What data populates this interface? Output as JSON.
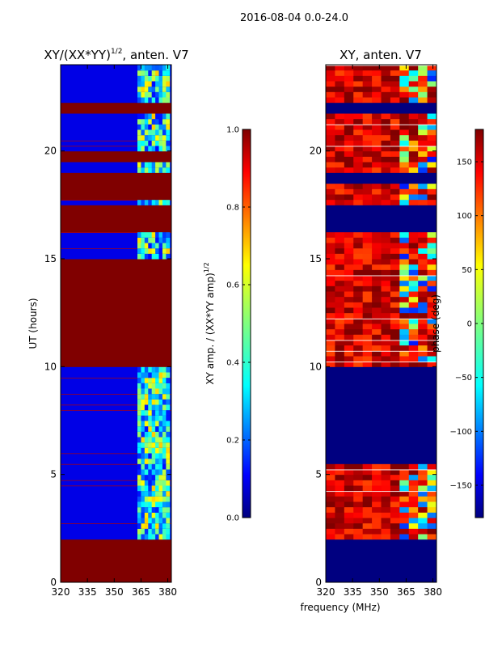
{
  "figure": {
    "suptitle": "2016-08-04 0.0-24.0",
    "shared_xlabel": "frequency (MHz)"
  },
  "chart_data": [
    {
      "type": "heatmap",
      "title_main": "XY/(XX*YY)",
      "title_sup": "1/2",
      "title_tail": ", anten. V7",
      "xlabel": "",
      "ylabel": "UT (hours)",
      "xlim": [
        320,
        382
      ],
      "ylim": [
        0,
        24
      ],
      "x_ticks": [
        320,
        335,
        350,
        365,
        380
      ],
      "y_ticks": [
        0,
        5,
        10,
        15,
        20
      ],
      "colorbar": {
        "label_main": "XY amp. / (XX*YY amp)",
        "label_sup": "1/2",
        "range": [
          0.0,
          1.0
        ],
        "ticks": [
          "0.0",
          "0.2",
          "0.4",
          "0.6",
          "0.8",
          "1.0"
        ],
        "tick_values": [
          0.0,
          0.2,
          0.4,
          0.6,
          0.8,
          1.0
        ]
      },
      "flagged_value": 1.0,
      "flagged_ut_ranges": [
        [
          0,
          1.9
        ],
        [
          9.9,
          15.0
        ],
        [
          16.2,
          17.4
        ],
        [
          17.7,
          18.2
        ],
        [
          18.2,
          19.0
        ],
        [
          19.6,
          19.9
        ],
        [
          21.8,
          22.2
        ]
      ],
      "dense_band_mhz": [
        363,
        381
      ],
      "dense_band_typical_value": 0.35,
      "quiet_value": 0.1
    },
    {
      "type": "heatmap",
      "title": "XY, anten. V7",
      "xlabel": "",
      "ylabel": "",
      "xlim": [
        320,
        382
      ],
      "ylim": [
        0,
        24
      ],
      "x_ticks": [
        320,
        335,
        350,
        365,
        380
      ],
      "y_ticks": [
        0,
        5,
        10,
        15,
        20
      ],
      "colorbar": {
        "label": "phase (deg)",
        "range": [
          -180,
          180
        ],
        "ticks": [
          "−150",
          "−100",
          "−50",
          "0",
          "50",
          "100",
          "150"
        ],
        "tick_values": [
          -150,
          -100,
          -50,
          0,
          50,
          100,
          150
        ]
      },
      "flagged_value": -180,
      "flagged_ut_ranges": [
        [
          0,
          1.9
        ],
        [
          5.4,
          9.9
        ],
        [
          16.2,
          17.4
        ],
        [
          18.6,
          19.0
        ],
        [
          21.8,
          22.2
        ]
      ],
      "typical_phase_deg": 150
    }
  ],
  "colors": {
    "jet_dark_blue": "#00007f",
    "jet_dark_red": "#7f0000",
    "axis": "#000000"
  }
}
